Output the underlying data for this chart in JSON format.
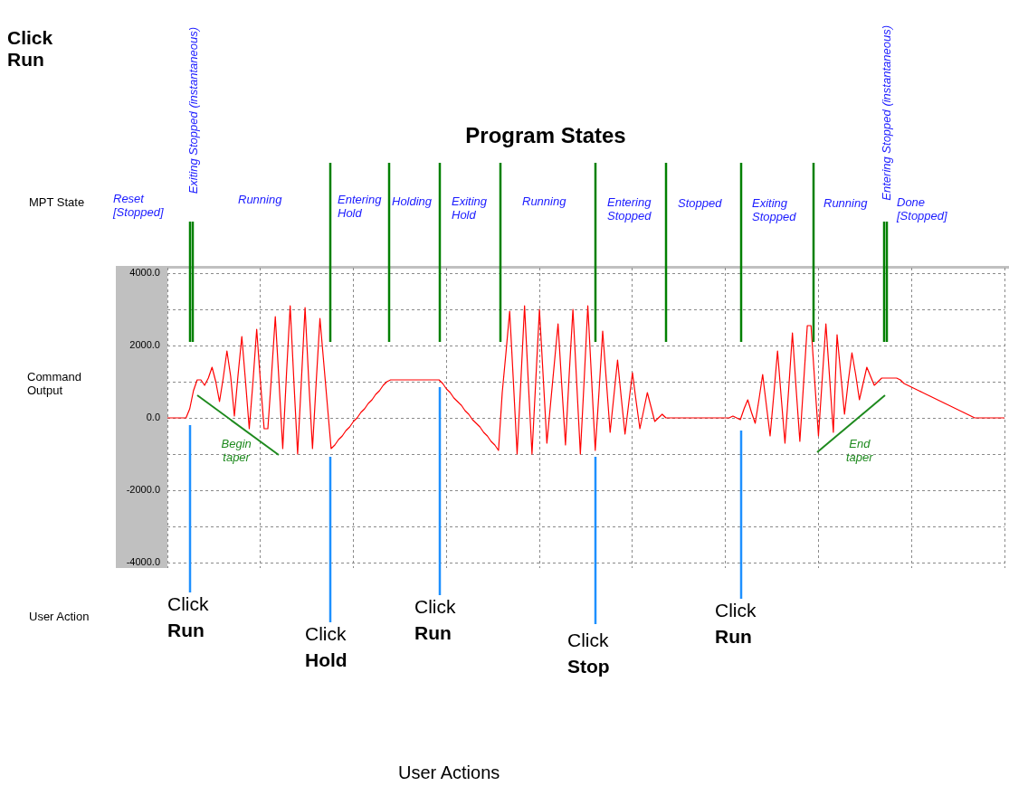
{
  "chart_data": {
    "type": "line",
    "title": "Program States",
    "ylabel": "Command Output",
    "categories": [
      null,
      null,
      null,
      null,
      null,
      null,
      null,
      null,
      null,
      null,
      null,
      null,
      null,
      null,
      null,
      null,
      null,
      null,
      null,
      null,
      null,
      null,
      null,
      null,
      null,
      null,
      null,
      null,
      null,
      null,
      null,
      null,
      null,
      null,
      null,
      null,
      null,
      null,
      null,
      null,
      null,
      null,
      null,
      null,
      null,
      null,
      null,
      null,
      null,
      null,
      null,
      null,
      null,
      null,
      null,
      null,
      null,
      null,
      null,
      null,
      null,
      null,
      null,
      null,
      null,
      null,
      null,
      null,
      null,
      null,
      null,
      null,
      null,
      null,
      null,
      null,
      null,
      null,
      null,
      null,
      null,
      null,
      null,
      null,
      null,
      null,
      null,
      null,
      null,
      null,
      null,
      null,
      null,
      null,
      null,
      null,
      null,
      null,
      null,
      null,
      null,
      null,
      null,
      null,
      null,
      null,
      null,
      null,
      null,
      null,
      null,
      null,
      null,
      null,
      null,
      null,
      null,
      null,
      null,
      null,
      null,
      null,
      null,
      null,
      null,
      null,
      null,
      null,
      null,
      null,
      null,
      null,
      null,
      null,
      null,
      null,
      null,
      null,
      null,
      null,
      null,
      null,
      null,
      null,
      null,
      null,
      null,
      null,
      null,
      null,
      null,
      null,
      null,
      null,
      null,
      null,
      null,
      null,
      null,
      null,
      null,
      null,
      null,
      null,
      null,
      null,
      null,
      null,
      null,
      null,
      null,
      null,
      null,
      null,
      null,
      null,
      null,
      null,
      null,
      null,
      null,
      null,
      null,
      null,
      null,
      null,
      null,
      null,
      null,
      null,
      null,
      null,
      null,
      null,
      null,
      null,
      null,
      null,
      null,
      null,
      null,
      null,
      null,
      null,
      null,
      null,
      null,
      null,
      null,
      null,
      null,
      null,
      null,
      null,
      null,
      null,
      null,
      null,
      null,
      null,
      null,
      null,
      null,
      null,
      null,
      null
    ],
    "ylim": [
      -4150,
      4150
    ],
    "yticks": [
      {
        "value": -4000,
        "label": "-4000.0"
      },
      {
        "value": -3000,
        "label": null
      },
      {
        "value": -2000,
        "label": "-2000.0"
      },
      {
        "value": -1000,
        "label": null
      },
      {
        "value": 0,
        "label": "0.0"
      },
      {
        "value": 1000,
        "label": null
      },
      {
        "value": 2000,
        "label": "2000.0"
      },
      {
        "value": 3000,
        "label": null
      },
      {
        "value": 4000,
        "label": "4000.0"
      }
    ],
    "tick_labels": "y",
    "grid": true,
    "marker": "none",
    "line_style": "solid",
    "series": [
      {
        "color": "#ff0000",
        "values": [
          0,
          0,
          0,
          0,
          0,
          0,
          250,
          750,
          1050,
          1050,
          900,
          1100,
          1400,
          1000,
          450,
          1100,
          1850,
          1150,
          50,
          1200,
          2250,
          1000,
          -300,
          1000,
          2450,
          1000,
          -300,
          -300,
          1200,
          2800,
          1000,
          -850,
          1200,
          3100,
          1000,
          -1000,
          1000,
          3050,
          1000,
          -850,
          1000,
          2750,
          1550,
          350,
          -850,
          -750,
          -600,
          -500,
          -350,
          -250,
          -100,
          0,
          150,
          250,
          400,
          500,
          650,
          750,
          900,
          1000,
          1050,
          1050,
          1050,
          1050,
          1050,
          1050,
          1050,
          1050,
          1050,
          1050,
          1050,
          1050,
          1050,
          1050,
          950,
          800,
          700,
          550,
          450,
          350,
          200,
          100,
          -50,
          -150,
          -250,
          -400,
          -500,
          -650,
          -750,
          -900,
          700,
          1800,
          2950,
          1000,
          -1000,
          1000,
          3100,
          1000,
          -1000,
          1000,
          3000,
          1150,
          -700,
          400,
          1500,
          2600,
          900,
          -750,
          1200,
          3000,
          1000,
          -1000,
          1000,
          3100,
          1100,
          -900,
          700,
          2400,
          1000,
          -400,
          600,
          1600,
          550,
          -450,
          400,
          1250,
          450,
          -300,
          200,
          700,
          300,
          -100,
          0,
          100,
          0,
          0,
          0,
          0,
          0,
          0,
          0,
          0,
          0,
          0,
          0,
          0,
          0,
          0,
          0,
          0,
          0,
          0,
          50,
          0,
          -50,
          250,
          500,
          150,
          -150,
          500,
          1200,
          350,
          -500,
          650,
          1850,
          550,
          -700,
          800,
          2350,
          800,
          -650,
          950,
          2550,
          2550,
          1000,
          -500,
          1050,
          2600,
          1100,
          -400,
          2300,
          1200,
          100,
          1000,
          1800,
          1200,
          500,
          950,
          1400,
          1150,
          900,
          1000,
          1100,
          1100,
          1100,
          1100,
          1100,
          1050,
          950,
          900,
          850,
          800,
          750,
          700,
          650,
          600,
          550,
          500,
          450,
          400,
          350,
          300,
          250,
          200,
          150,
          100,
          50,
          0,
          0,
          0,
          0,
          0,
          0,
          0,
          0,
          0
        ]
      }
    ],
    "annotations": [
      "Click\nRun",
      "MPT State",
      "User Action",
      "Reset\n[Stopped]",
      "Exiting Stopped (instantaneous)",
      "Running",
      "Entering\nHold",
      "Holding",
      "Exiting\nHold",
      "Running",
      "Entering\nStopped",
      "Stopped",
      "Exiting\nStopped",
      "Running",
      "Entering Stopped (instantaneous)",
      "Done\n[Stopped]",
      "Click\nRun",
      "Click\nHold",
      "Click\nRun",
      "Click\nStop",
      "Click\nRun",
      "Begin\ntaper",
      "End\ntaper",
      "User Actions"
    ]
  }
}
